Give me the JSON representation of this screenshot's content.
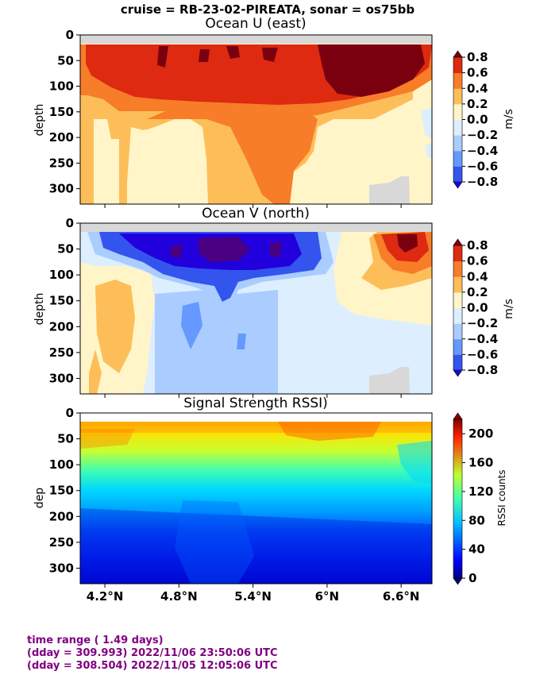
{
  "suptitle": "cruise = RB-23-02-PIREATA,  sonar = os75bb",
  "footer": {
    "line1": "time range ( 1.49 days)",
    "line2": "(dday = 309.993) 2022/11/06 23:50:06 UTC",
    "line3": "(dday = 308.504) 2022/11/05 12:05:06 UTC",
    "color": "#800080"
  },
  "chart_data": [
    {
      "type": "heatmap",
      "title": "Ocean U (east)",
      "ylabel": "depth",
      "colorbar_label": "m/s",
      "ylim": [
        330,
        0
      ],
      "y_ticks": [
        "0",
        "50",
        "100",
        "150",
        "200",
        "250",
        "300"
      ],
      "x_ticks": [
        "4.2°N",
        "4.8°N",
        "5.4°N",
        "6°N",
        "6.6°N"
      ],
      "colorbar_ticks": [
        "0.8",
        "0.6",
        "0.4",
        "0.2",
        "0.0",
        "−0.2",
        "−0.4",
        "−0.6",
        "−0.8"
      ],
      "levels": [
        -0.8,
        -0.6,
        -0.4,
        -0.2,
        0.0,
        0.2,
        0.4,
        0.6,
        0.8
      ],
      "colors": [
        "#2200dd",
        "#3355ee",
        "#6699ff",
        "#aaccff",
        "#ddeeff",
        "#fff5c8",
        "#fdbe5a",
        "#f77d28",
        "#dd2a10",
        "#7a0010"
      ],
      "latitude_range": [
        4.0,
        6.85
      ],
      "depth_range": [
        20,
        330
      ],
      "regions": [
        {
          "lat": [
            4.0,
            6.85
          ],
          "depth": [
            20,
            110
          ],
          "u": 0.65
        },
        {
          "lat": [
            6.0,
            6.75
          ],
          "depth": [
            20,
            95
          ],
          "u": 0.85
        },
        {
          "lat": [
            4.0,
            6.4
          ],
          "depth": [
            110,
            160
          ],
          "u": 0.35
        },
        {
          "lat": [
            4.6,
            5.95
          ],
          "depth": [
            150,
            250
          ],
          "u": 0.45
        },
        {
          "lat": [
            4.2,
            5.2
          ],
          "depth": [
            160,
            300
          ],
          "u": 0.15
        },
        {
          "lat": [
            6.3,
            6.85
          ],
          "depth": [
            110,
            330
          ],
          "u": 0.1
        }
      ]
    },
    {
      "type": "heatmap",
      "title": "Ocean V (north)",
      "ylabel": "depth",
      "colorbar_label": "m/s",
      "ylim": [
        330,
        0
      ],
      "y_ticks": [
        "0",
        "50",
        "100",
        "150",
        "200",
        "250",
        "300"
      ],
      "x_ticks": [
        "4.2°N",
        "4.8°N",
        "5.4°N",
        "6°N",
        "6.6°N"
      ],
      "colorbar_ticks": [
        "0.8",
        "0.6",
        "0.4",
        "0.2",
        "0.0",
        "−0.2",
        "−0.4",
        "−0.6",
        "−0.8"
      ],
      "levels": [
        -0.8,
        -0.6,
        -0.4,
        -0.2,
        0.0,
        0.2,
        0.4,
        0.6,
        0.8
      ],
      "colors": [
        "#2200dd",
        "#3355ee",
        "#6699ff",
        "#aaccff",
        "#ddeeff",
        "#fff5c8",
        "#fdbe5a",
        "#f77d28",
        "#dd2a10",
        "#7a0010"
      ],
      "latitude_range": [
        4.0,
        6.85
      ],
      "depth_range": [
        20,
        330
      ],
      "regions": [
        {
          "lat": [
            4.0,
            4.8
          ],
          "depth": [
            90,
            330
          ],
          "v": 0.1
        },
        {
          "lat": [
            4.15,
            4.6
          ],
          "depth": [
            120,
            250
          ],
          "v": 0.3
        },
        {
          "lat": [
            4.15,
            6.2
          ],
          "depth": [
            20,
            110
          ],
          "v": -0.5
        },
        {
          "lat": [
            4.6,
            5.8
          ],
          "depth": [
            25,
            80
          ],
          "v": -0.75
        },
        {
          "lat": [
            4.8,
            6.2
          ],
          "depth": [
            110,
            330
          ],
          "v": -0.3
        },
        {
          "lat": [
            6.2,
            6.85
          ],
          "depth": [
            20,
            110
          ],
          "v": 0.5
        }
      ]
    },
    {
      "type": "heatmap",
      "title": "Signal Strength RSSI)",
      "ylabel": "dep",
      "colorbar_label": "RSSI counts",
      "ylim": [
        330,
        0
      ],
      "y_ticks": [
        "0",
        "50",
        "100",
        "150",
        "200",
        "250",
        "300"
      ],
      "x_ticks": [
        "4.2°N",
        "4.8°N",
        "5.4°N",
        "6°N",
        "6.6°N"
      ],
      "colorbar_ticks": [
        "200",
        "160",
        "120",
        "80",
        "40",
        "0"
      ],
      "vrange": [
        0,
        220
      ],
      "latitude_range": [
        4.0,
        6.85
      ],
      "depth_range": [
        20,
        330
      ],
      "profile": [
        {
          "depth": 20,
          "rssi": 175
        },
        {
          "depth": 50,
          "rssi": 150
        },
        {
          "depth": 100,
          "rssi": 120
        },
        {
          "depth": 150,
          "rssi": 85
        },
        {
          "depth": 200,
          "rssi": 50
        },
        {
          "depth": 250,
          "rssi": 35
        },
        {
          "depth": 330,
          "rssi": 25
        }
      ]
    }
  ]
}
